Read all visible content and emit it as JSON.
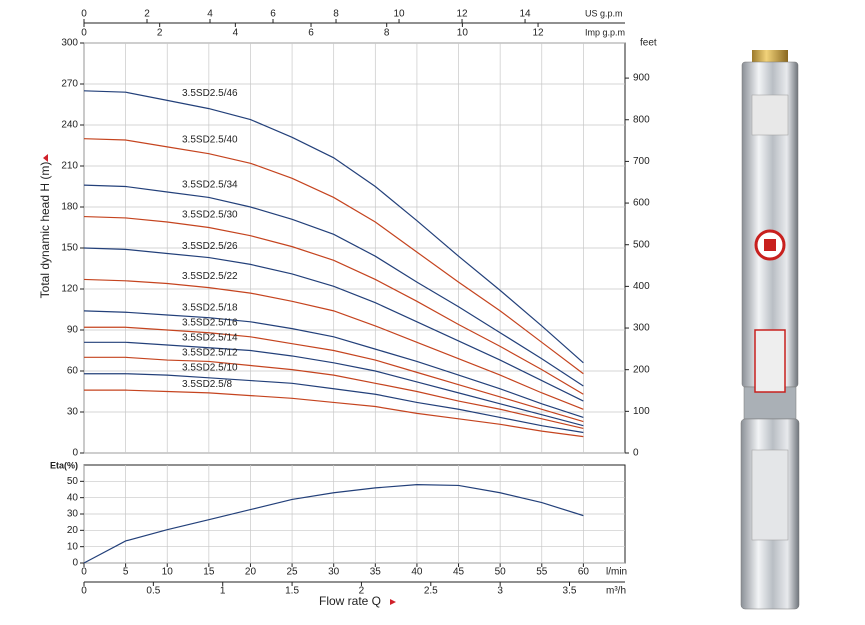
{
  "chart_data": [
    {
      "type": "line",
      "ylabel": "Total dynamic head H (m)",
      "x": [
        0,
        5,
        10,
        15,
        20,
        25,
        30,
        35,
        40,
        45,
        50,
        55,
        60
      ],
      "xlim": [
        0,
        65
      ],
      "ylim": [
        0,
        300
      ],
      "yticks": [
        0,
        30,
        60,
        90,
        120,
        150,
        180,
        210,
        240,
        270,
        300
      ],
      "y2label": "feet",
      "y2lim": [
        0,
        984.25
      ],
      "y2ticks": [
        0,
        100,
        200,
        300,
        400,
        500,
        600,
        700,
        800,
        900
      ],
      "top_axes": [
        {
          "label": "US g.p.m",
          "lim": [
            0,
            17.173
          ],
          "ticks": [
            0,
            2,
            4,
            6,
            8,
            10,
            12,
            14
          ]
        },
        {
          "label": "Imp g.p.m",
          "lim": [
            0,
            14.298
          ],
          "ticks": [
            0,
            2,
            4,
            6,
            8,
            10,
            12
          ]
        }
      ],
      "grid": true,
      "series": [
        {
          "name": "3.5SD2.5/46",
          "color": "#23407a",
          "values": [
            265,
            264,
            258,
            252,
            244,
            231,
            216,
            195,
            170,
            144,
            119,
            93,
            66
          ]
        },
        {
          "name": "3.5SD2.5/40",
          "color": "#c5441f",
          "values": [
            230,
            229,
            224,
            219,
            212,
            201,
            187,
            169,
            147,
            125,
            104,
            81,
            58
          ]
        },
        {
          "name": "3.5SD2.5/34",
          "color": "#23407a",
          "values": [
            196,
            195,
            191,
            187,
            180,
            171,
            160,
            144,
            125,
            107,
            88,
            69,
            49
          ]
        },
        {
          "name": "3.5SD2.5/30",
          "color": "#c5441f",
          "values": [
            173,
            172,
            169,
            165,
            159,
            151,
            141,
            127,
            111,
            94,
            78,
            61,
            43
          ]
        },
        {
          "name": "3.5SD2.5/26",
          "color": "#23407a",
          "values": [
            150,
            149,
            146,
            143,
            138,
            131,
            122,
            110,
            96,
            82,
            68,
            53,
            38
          ]
        },
        {
          "name": "3.5SD2.5/22",
          "color": "#c5441f",
          "values": [
            127,
            126,
            124,
            121,
            117,
            111,
            104,
            93,
            81,
            69,
            57,
            44,
            32
          ]
        },
        {
          "name": "3.5SD2.5/18",
          "color": "#23407a",
          "values": [
            104,
            103,
            101,
            99,
            96,
            91,
            85,
            76,
            67,
            57,
            47,
            36,
            26
          ]
        },
        {
          "name": "3.5SD2.5/16",
          "color": "#c5441f",
          "values": [
            92,
            92,
            90,
            88,
            85,
            80,
            75,
            68,
            59,
            50,
            41,
            32,
            23
          ]
        },
        {
          "name": "3.5SD2.5/14",
          "color": "#23407a",
          "values": [
            81,
            81,
            79,
            77,
            75,
            71,
            66,
            60,
            52,
            44,
            36,
            28,
            20
          ]
        },
        {
          "name": "3.5SD2.5/12",
          "color": "#c5441f",
          "values": [
            70,
            70,
            68,
            67,
            64,
            61,
            57,
            51,
            45,
            38,
            32,
            25,
            18
          ]
        },
        {
          "name": "3.5SD2.5/10",
          "color": "#23407a",
          "values": [
            58,
            58,
            57,
            55,
            53,
            51,
            47,
            43,
            37,
            32,
            26,
            20,
            15
          ]
        },
        {
          "name": "3.5SD2.5/8",
          "color": "#c5441f",
          "values": [
            46,
            46,
            45,
            44,
            42,
            40,
            37,
            34,
            29,
            25,
            21,
            16,
            12
          ]
        }
      ]
    },
    {
      "type": "line",
      "ylabel": "Eta(%)",
      "x": [
        0,
        5,
        10,
        15,
        20,
        25,
        30,
        35,
        40,
        45,
        50,
        55,
        60
      ],
      "xlim": [
        0,
        65
      ],
      "xticks": [
        0,
        5,
        10,
        15,
        20,
        25,
        30,
        35,
        40,
        45,
        50,
        55,
        60
      ],
      "xlabel": "l/min",
      "bottom_axis2": {
        "label": "m³/h",
        "lim": [
          0,
          3.9
        ],
        "ticks": [
          0,
          0.5,
          1,
          1.5,
          2,
          2.5,
          3,
          3.5
        ]
      },
      "xtitle": "Flow rate Q",
      "ylim": [
        0,
        60
      ],
      "yticks": [
        0,
        10,
        20,
        30,
        40,
        50
      ],
      "grid": true,
      "color": "#23407a",
      "values": [
        0,
        13.5,
        20.4,
        26.5,
        32.7,
        38.9,
        43,
        46,
        48,
        47.5,
        43,
        37,
        29
      ]
    }
  ]
}
